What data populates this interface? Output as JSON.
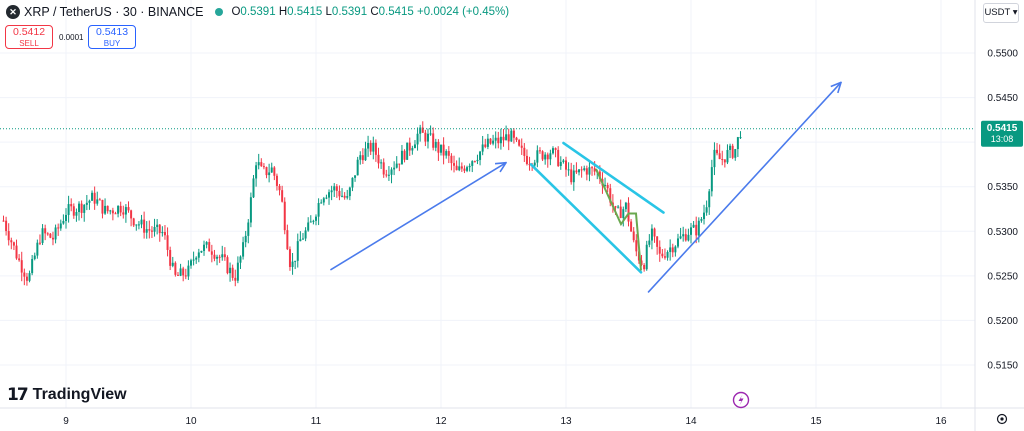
{
  "header": {
    "symbol": "XRP / TetherUS · 30 · BINANCE",
    "ohlc_labels": {
      "o": "O",
      "h": "H",
      "l": "L",
      "c": "C"
    },
    "open": "0.5391",
    "high": "0.5415",
    "low": "0.5391",
    "close": "0.5415",
    "change": "+0.0024 (+0.45%)"
  },
  "trade": {
    "sell_price": "0.5412",
    "sell_label": "SELL",
    "spread": "0.0001",
    "buy_price": "0.5413",
    "buy_label": "BUY"
  },
  "currency": "USDT ▾",
  "branding": {
    "logo_text": "TradingView"
  },
  "price_badge": {
    "price": "0.5415",
    "countdown": "13:08"
  },
  "colors": {
    "up": "#089981",
    "down": "#f23645",
    "arrow": "#4b7bec",
    "channel": "#29c5e6",
    "wedge": "#6aa84f",
    "grid": "#f0f3fa"
  },
  "chart_data": {
    "type": "candlestick",
    "ylim": [
      0.512,
      0.5538
    ],
    "y_ticks": [
      "0.5500",
      "0.5450",
      "0.5400",
      "0.5350",
      "0.5300",
      "0.5250",
      "0.5200",
      "0.5150"
    ],
    "x_ticks": [
      "9",
      "10",
      "11",
      "12",
      "13",
      "14",
      "15",
      "16"
    ],
    "x_range_days": [
      8.5,
      16.4
    ],
    "current_price": 0.5415,
    "close_series": [
      [
        8.5,
        0.5312
      ],
      [
        8.62,
        0.5268
      ],
      [
        8.7,
        0.5246
      ],
      [
        8.8,
        0.5298
      ],
      [
        8.9,
        0.5292
      ],
      [
        9.0,
        0.5322
      ],
      [
        9.12,
        0.5328
      ],
      [
        9.22,
        0.5338
      ],
      [
        9.32,
        0.5322
      ],
      [
        9.45,
        0.5328
      ],
      [
        9.55,
        0.5312
      ],
      [
        9.65,
        0.5302
      ],
      [
        9.78,
        0.5298
      ],
      [
        9.87,
        0.5248
      ],
      [
        9.98,
        0.5255
      ],
      [
        10.05,
        0.528
      ],
      [
        10.15,
        0.5282
      ],
      [
        10.25,
        0.5268
      ],
      [
        10.35,
        0.5248
      ],
      [
        10.42,
        0.5282
      ],
      [
        10.48,
        0.5335
      ],
      [
        10.52,
        0.538
      ],
      [
        10.57,
        0.5365
      ],
      [
        10.65,
        0.537
      ],
      [
        10.72,
        0.534
      ],
      [
        10.8,
        0.5258
      ],
      [
        10.88,
        0.5292
      ],
      [
        10.95,
        0.5305
      ],
      [
        11.05,
        0.5342
      ],
      [
        11.15,
        0.5348
      ],
      [
        11.25,
        0.5335
      ],
      [
        11.35,
        0.5385
      ],
      [
        11.45,
        0.5395
      ],
      [
        11.55,
        0.5368
      ],
      [
        11.65,
        0.5378
      ],
      [
        11.75,
        0.5395
      ],
      [
        11.82,
        0.541
      ],
      [
        11.9,
        0.5405
      ],
      [
        11.98,
        0.5392
      ],
      [
        12.05,
        0.5385
      ],
      [
        12.12,
        0.5365
      ],
      [
        12.2,
        0.5375
      ],
      [
        12.28,
        0.5385
      ],
      [
        12.38,
        0.5398
      ],
      [
        12.48,
        0.5402
      ],
      [
        12.55,
        0.5408
      ],
      [
        12.62,
        0.5392
      ],
      [
        12.7,
        0.538
      ],
      [
        12.78,
        0.5385
      ],
      [
        12.88,
        0.539
      ],
      [
        12.95,
        0.5378
      ],
      [
        13.05,
        0.536
      ],
      [
        13.15,
        0.537
      ],
      [
        13.25,
        0.5366
      ],
      [
        13.32,
        0.5352
      ],
      [
        13.4,
        0.5318
      ],
      [
        13.48,
        0.5328
      ],
      [
        13.55,
        0.528
      ],
      [
        13.62,
        0.5262
      ],
      [
        13.68,
        0.5298
      ],
      [
        13.75,
        0.5272
      ],
      [
        13.82,
        0.528
      ],
      [
        13.9,
        0.529
      ],
      [
        13.98,
        0.53
      ],
      [
        14.05,
        0.5302
      ],
      [
        14.12,
        0.5328
      ],
      [
        14.18,
        0.5385
      ],
      [
        14.24,
        0.538
      ],
      [
        14.3,
        0.5388
      ],
      [
        14.35,
        0.539
      ],
      [
        14.4,
        0.5415
      ]
    ]
  }
}
